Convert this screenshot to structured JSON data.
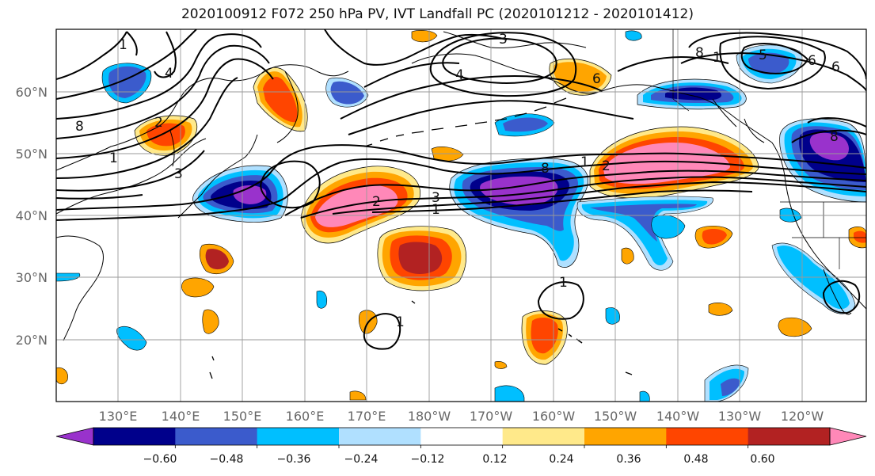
{
  "title": "2020100912 F072 250 hPa PV, IVT Landfall PC (2020101212 - 2020101412)",
  "lat_labels": [
    "60°N",
    "50°N",
    "40°N",
    "30°N",
    "20°N"
  ],
  "lon_labels": [
    "130°E",
    "140°E",
    "150°E",
    "160°E",
    "170°E",
    "180°W",
    "170°W",
    "160°W",
    "150°W",
    "140°W",
    "130°W",
    "120°W"
  ],
  "colorbar": {
    "colors": [
      "#9932cc",
      "#00008b",
      "#3b5bcc",
      "#00bfff",
      "#b0e0ff",
      "#ffffff",
      "#ffe98a",
      "#ffa500",
      "#ff4500",
      "#b22222",
      "#ff88b8"
    ],
    "tick_labels": [
      "−0.60",
      "−0.48",
      "−0.36",
      "−0.24",
      "−0.12",
      "0.12",
      "0.24",
      "0.36",
      "0.48",
      "0.60"
    ]
  },
  "contour_labels": [
    "1",
    "2",
    "3",
    "4",
    "6",
    "8",
    "1",
    "1",
    "2",
    "3",
    "8",
    "1",
    "2",
    "3",
    "4",
    "6",
    "8",
    "1",
    "5",
    "6",
    "8",
    "1",
    "1"
  ]
}
